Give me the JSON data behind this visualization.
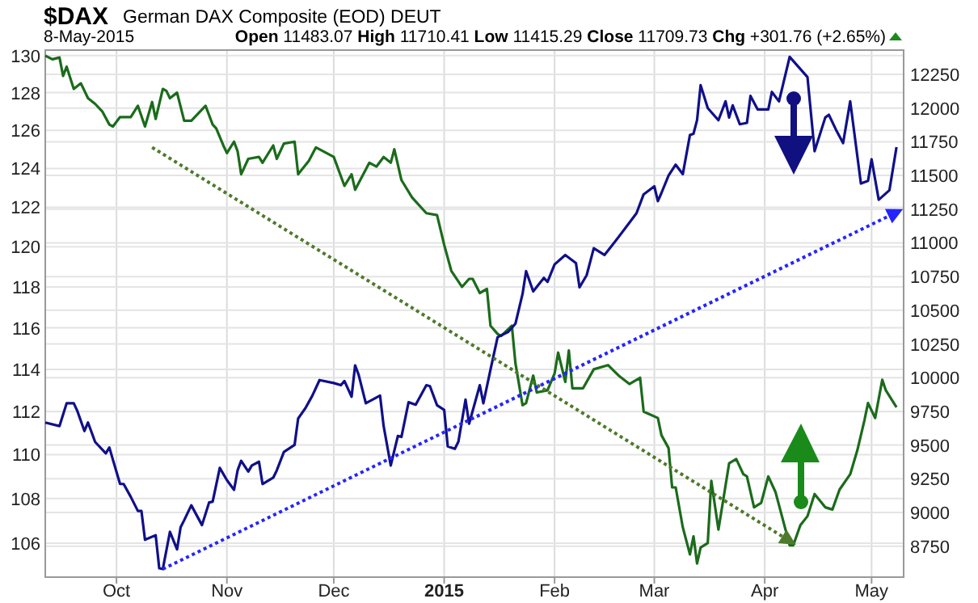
{
  "chart_data": {
    "type": "line",
    "title": "$DAX",
    "subtitle": "German DAX Composite (EOD) DEUT",
    "annotations": [
      "8-May-2015",
      "Open 11483.07",
      "High 11710.41",
      "Low 11415.29",
      "Close 11709.73",
      "Chg +301.76 (+2.65%)"
    ],
    "xlim": [
      "2014-09-11",
      "2015-05-10"
    ],
    "xticks": [
      {
        "value": "2014-10-01",
        "label": "Oct"
      },
      {
        "value": "2014-11-01",
        "label": "Nov"
      },
      {
        "value": "2014-12-01",
        "label": "Dec"
      },
      {
        "value": "2015-01-01",
        "label": "2015"
      },
      {
        "value": "2015-02-01",
        "label": "Feb"
      },
      {
        "value": "2015-03-01",
        "label": "Mar"
      },
      {
        "value": "2015-04-01",
        "label": "Apr"
      },
      {
        "value": "2015-05-01",
        "label": "May"
      }
    ],
    "ylim": [
      104.5,
      130.3
    ],
    "yticks": [
      106,
      108,
      110,
      112,
      114,
      116,
      118,
      120,
      122,
      124,
      126,
      128,
      130
    ],
    "y2lim": [
      8520,
      12430
    ],
    "y2ticks": [
      8750,
      9000,
      9250,
      9500,
      9750,
      10000,
      10250,
      10500,
      10750,
      11000,
      11250,
      11500,
      11750,
      12000,
      12250
    ],
    "log": "y",
    "grid": true,
    "line_style": "solid",
    "series": [
      {
        "color": "#1b6b1b",
        "axis": "y",
        "x": [
          "2014-09-11",
          "2014-09-13",
          "2014-09-15",
          "2014-09-16",
          "2014-09-17",
          "2014-09-19",
          "2014-09-21",
          "2014-09-23",
          "2014-09-25",
          "2014-09-27",
          "2014-09-29",
          "2014-09-30",
          "2014-10-02",
          "2014-10-05",
          "2014-10-07",
          "2014-10-09",
          "2014-10-11",
          "2014-10-12",
          "2014-10-14",
          "2014-10-15",
          "2014-10-16",
          "2014-10-18",
          "2014-10-20",
          "2014-10-22",
          "2014-10-26",
          "2014-10-28",
          "2014-10-29",
          "2014-10-31",
          "2014-11-01",
          "2014-11-03",
          "2014-11-04",
          "2014-11-05",
          "2014-11-07",
          "2014-11-10",
          "2014-11-11",
          "2014-11-14",
          "2014-11-15",
          "2014-11-17",
          "2014-11-20",
          "2014-11-21",
          "2014-11-24",
          "2014-11-26",
          "2014-12-01",
          "2014-12-04",
          "2014-12-06",
          "2014-12-07",
          "2014-12-11",
          "2014-12-13",
          "2014-12-15",
          "2014-12-17",
          "2014-12-18",
          "2014-12-20",
          "2014-12-23",
          "2014-12-27",
          "2014-12-30",
          "2015-01-01",
          "2015-01-03",
          "2015-01-06",
          "2015-01-08",
          "2015-01-09",
          "2015-01-11",
          "2015-01-13",
          "2015-01-14",
          "2015-01-16",
          "2015-01-17",
          "2015-01-20",
          "2015-01-21",
          "2015-01-23",
          "2015-01-24",
          "2015-01-26",
          "2015-01-27",
          "2015-01-30",
          "2015-02-01",
          "2015-02-02",
          "2015-02-04",
          "2015-02-05",
          "2015-02-06",
          "2015-02-09",
          "2015-02-12",
          "2015-02-16",
          "2015-02-19",
          "2015-02-22",
          "2015-02-25",
          "2015-02-26",
          "2015-03-02",
          "2015-03-03",
          "2015-03-05",
          "2015-03-06",
          "2015-03-07",
          "2015-03-09",
          "2015-03-11",
          "2015-03-12",
          "2015-03-13",
          "2015-03-14",
          "2015-03-16",
          "2015-03-17",
          "2015-03-19",
          "2015-03-22",
          "2015-03-24",
          "2015-03-26",
          "2015-03-27",
          "2015-03-29",
          "2015-03-31",
          "2015-04-02",
          "2015-04-04",
          "2015-04-06",
          "2015-04-08",
          "2015-04-09",
          "2015-04-11",
          "2015-04-13",
          "2015-04-15",
          "2015-04-18",
          "2015-04-20",
          "2015-04-22",
          "2015-04-25",
          "2015-04-27",
          "2015-04-29",
          "2015-04-30",
          "2015-05-02",
          "2015-05-04",
          "2015-05-05",
          "2015-05-08"
        ],
        "values": [
          130.0,
          129.8,
          129.9,
          128.9,
          129.4,
          128.2,
          128.5,
          127.7,
          127.4,
          127.0,
          126.3,
          126.2,
          126.7,
          126.7,
          127.3,
          126.2,
          127.5,
          126.6,
          128.2,
          128.1,
          127.7,
          128.0,
          126.5,
          126.5,
          127.3,
          126.3,
          126.1,
          125.2,
          124.8,
          125.4,
          124.9,
          123.7,
          124.5,
          124.6,
          124.3,
          125.2,
          124.5,
          125.3,
          125.4,
          123.7,
          124.4,
          125.1,
          124.6,
          123.1,
          123.7,
          122.9,
          124.3,
          124.1,
          124.6,
          124.3,
          125.0,
          123.4,
          122.5,
          121.7,
          121.6,
          120.1,
          118.8,
          118.0,
          118.4,
          118.4,
          117.7,
          117.9,
          116.1,
          115.7,
          115.6,
          116.1,
          114.3,
          112.3,
          112.4,
          113.7,
          112.9,
          113.0,
          113.8,
          114.8,
          113.4,
          114.9,
          113.1,
          113.1,
          114.0,
          114.2,
          113.7,
          113.3,
          113.6,
          112.0,
          111.7,
          110.9,
          110.3,
          108.5,
          108.5,
          106.7,
          105.5,
          106.3,
          105.1,
          105.8,
          106.0,
          108.8,
          106.6,
          109.6,
          109.8,
          109.1,
          109.0,
          107.6,
          107.8,
          109.0,
          108.3,
          107.1,
          105.9,
          105.9,
          106.8,
          107.2,
          108.2,
          107.6,
          107.5,
          108.4,
          109.1,
          110.2,
          111.6,
          112.4,
          111.7,
          113.5,
          113.0,
          112.2
        ]
      },
      {
        "color": "#10108a",
        "axis": "y2",
        "x": [
          "2014-09-11",
          "2014-09-15",
          "2014-09-17",
          "2014-09-19",
          "2014-09-20",
          "2014-09-22",
          "2014-09-23",
          "2014-09-25",
          "2014-09-28",
          "2014-09-29",
          "2014-09-30",
          "2014-10-02",
          "2014-10-03",
          "2014-10-05",
          "2014-10-07",
          "2014-10-08",
          "2014-10-09",
          "2014-10-12",
          "2014-10-13",
          "2014-10-14",
          "2014-10-16",
          "2014-10-18",
          "2014-10-19",
          "2014-10-20",
          "2014-10-22",
          "2014-10-25",
          "2014-10-27",
          "2014-10-28",
          "2014-10-30",
          "2014-11-01",
          "2014-11-03",
          "2014-11-04",
          "2014-11-05",
          "2014-11-07",
          "2014-11-08",
          "2014-11-10",
          "2014-11-11",
          "2014-11-14",
          "2014-11-15",
          "2014-11-17",
          "2014-11-20",
          "2014-11-21",
          "2014-11-23",
          "2014-11-25",
          "2014-11-27",
          "2014-12-01",
          "2014-12-03",
          "2014-12-04",
          "2014-12-06",
          "2014-12-07",
          "2014-12-08",
          "2014-12-10",
          "2014-12-14",
          "2014-12-15",
          "2014-12-17",
          "2014-12-19",
          "2014-12-20",
          "2014-12-22",
          "2014-12-24",
          "2014-12-27",
          "2014-12-28",
          "2014-12-30",
          "2015-01-01",
          "2015-01-02",
          "2015-01-04",
          "2015-01-05",
          "2015-01-07",
          "2015-01-08",
          "2015-01-11",
          "2015-01-12",
          "2015-01-14",
          "2015-01-16",
          "2015-01-19",
          "2015-01-21",
          "2015-01-23",
          "2015-01-24",
          "2015-01-26",
          "2015-01-29",
          "2015-01-30",
          "2015-02-01",
          "2015-02-04",
          "2015-02-07",
          "2015-02-08",
          "2015-02-10",
          "2015-02-12",
          "2015-02-15",
          "2015-02-18",
          "2015-02-22",
          "2015-02-24",
          "2015-02-26",
          "2015-03-01",
          "2015-03-02",
          "2015-03-03",
          "2015-03-05",
          "2015-03-07",
          "2015-03-09",
          "2015-03-11",
          "2015-03-12",
          "2015-03-13",
          "2015-03-14",
          "2015-03-16",
          "2015-03-19",
          "2015-03-21",
          "2015-03-22",
          "2015-03-23",
          "2015-03-25",
          "2015-03-27",
          "2015-03-28",
          "2015-03-30",
          "2015-04-02",
          "2015-04-03",
          "2015-04-05",
          "2015-04-06",
          "2015-04-08",
          "2015-04-10",
          "2015-04-13",
          "2015-04-15",
          "2015-04-18",
          "2015-04-19",
          "2015-04-21",
          "2015-04-23",
          "2015-04-25",
          "2015-04-28",
          "2015-04-30",
          "2015-05-01",
          "2015-05-03",
          "2015-05-06",
          "2015-05-08"
        ],
        "values": [
          9667,
          9641,
          9810,
          9810,
          9753,
          9604,
          9667,
          9523,
          9438,
          9482,
          9390,
          9211,
          9211,
          9116,
          9011,
          9011,
          8797,
          8831,
          8586,
          8580,
          8856,
          8726,
          8890,
          8942,
          9053,
          8906,
          9074,
          9080,
          9330,
          9240,
          9168,
          9312,
          9383,
          9303,
          9348,
          9376,
          9211,
          9258,
          9312,
          9449,
          9501,
          9697,
          9772,
          9867,
          9982,
          9960,
          9944,
          9975,
          9859,
          10091,
          10020,
          9810,
          9867,
          9641,
          9348,
          9567,
          9560,
          9818,
          9799,
          9944,
          9937,
          9795,
          9761,
          9490,
          9472,
          9526,
          9837,
          9658,
          9944,
          9810,
          10059,
          10300,
          10340,
          10400,
          10621,
          10790,
          10640,
          10740,
          10710,
          10840,
          10910,
          10850,
          10670,
          10760,
          10960,
          10910,
          11010,
          11150,
          11220,
          11360,
          11420,
          11310,
          11370,
          11500,
          11580,
          11510,
          11800,
          11810,
          11910,
          12170,
          12000,
          11910,
          12050,
          11930,
          12020,
          11880,
          11890,
          12090,
          11990,
          11990,
          12120,
          12050,
          12160,
          12380,
          12320,
          12230,
          11680,
          11930,
          11950,
          11840,
          11740,
          12050,
          11440,
          11460,
          11620,
          11320,
          11390,
          11710
        ]
      },
      {
        "type": "line",
        "color": "#4e7a2c",
        "axis": "y",
        "line_style": "dotted",
        "x": [
          "2014-10-11",
          "2015-04-09"
        ],
        "values": [
          125.1,
          106.0
        ]
      },
      {
        "type": "line",
        "color": "#2424ff",
        "axis": "y2",
        "line_style": "dotted",
        "x": [
          "2014-10-14",
          "2015-05-09"
        ],
        "values": [
          8580,
          11240
        ]
      }
    ]
  }
}
